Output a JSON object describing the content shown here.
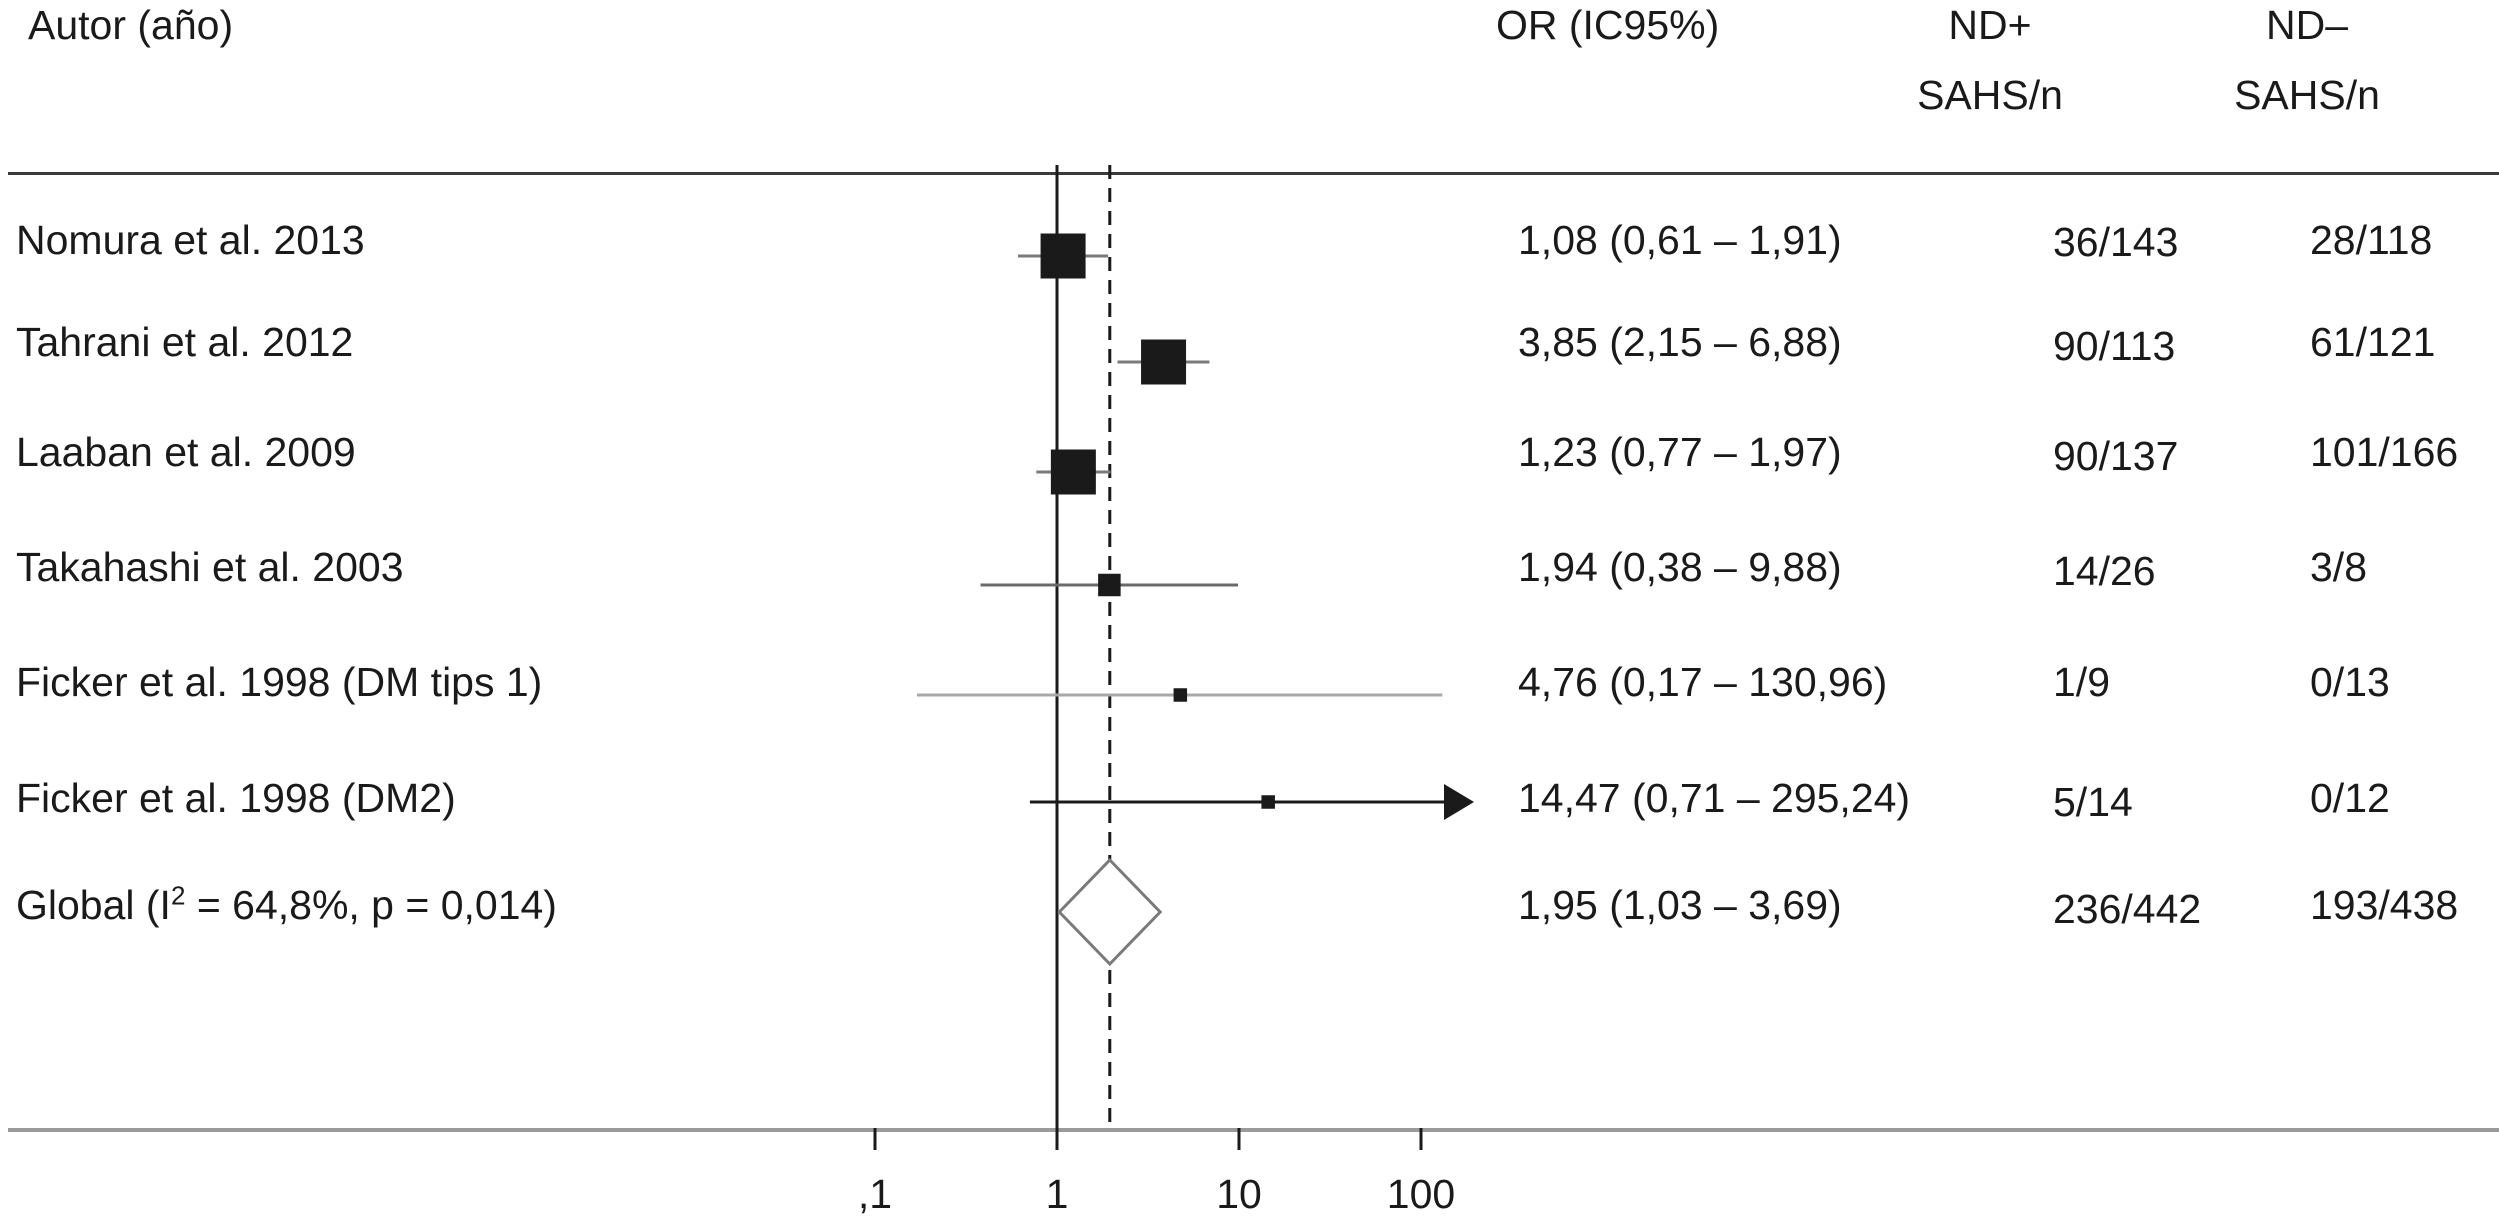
{
  "chart_data": {
    "type": "forest",
    "headers": {
      "author": "Autor (año)",
      "or": "OR (IC95%)",
      "nd_pos": [
        "ND+",
        "SAHS/n"
      ],
      "nd_neg": [
        "ND–",
        "SAHS/n"
      ]
    },
    "rows": [
      {
        "label": "Nomura et al. 2013",
        "or": 1.08,
        "ci": [
          0.61,
          1.91
        ],
        "weight": 5,
        "or_text": "1,08 (0,61 – 1,91)",
        "nd_pos": "36/143",
        "nd_neg": "28/118"
      },
      {
        "label": "Tahrani et al. 2012",
        "or": 3.85,
        "ci": [
          2.15,
          6.88
        ],
        "weight": 5,
        "or_text": "3,85 (2,15 – 6,88)",
        "nd_pos": "90/113",
        "nd_neg": "61/121"
      },
      {
        "label": "Laaban et al. 2009",
        "or": 1.23,
        "ci": [
          0.77,
          1.97
        ],
        "weight": 5,
        "or_text": "1,23 (0,77 – 1,97)",
        "nd_pos": "90/137",
        "nd_neg": "101/166"
      },
      {
        "label": "Takahashi et al. 2003",
        "or": 1.94,
        "ci": [
          0.38,
          9.88
        ],
        "weight": 2.5,
        "or_text": "1,94 (0,38 – 9,88)",
        "nd_pos": "14/26",
        "nd_neg": "3/8"
      },
      {
        "label": "Ficker et al. 1998 (DM tips 1)",
        "or": 4.76,
        "ci": [
          0.17,
          130.96
        ],
        "weight": 1.5,
        "or_text": "4,76 (0,17 – 130,96)",
        "nd_pos": "1/9",
        "nd_neg": "0/13"
      },
      {
        "label": "Ficker et al. 1998 (DM2)",
        "or": 14.47,
        "ci": [
          0.71,
          295.24
        ],
        "weight": 1.5,
        "or_text": "14,47 (0,71 – 295,24)",
        "nd_pos": "5/14",
        "nd_neg": "0/12",
        "arrow": true
      }
    ],
    "overall": {
      "label_prefix": "Global (I",
      "label_sup": "2",
      "label_suffix": " = 64,8%, p = 0,014)",
      "or": 1.95,
      "ci": [
        1.03,
        3.69
      ],
      "or_text": "1,95 (1,03 – 3,69)",
      "nd_pos": "236/442",
      "nd_neg": "193/438"
    },
    "x_axis": {
      "scale": "log",
      "ticks": [
        0.1,
        1,
        10,
        100
      ],
      "tick_labels": [
        ",1",
        "1",
        "10",
        "100"
      ]
    },
    "reference_line": 1,
    "pooled_line": 1.95
  }
}
